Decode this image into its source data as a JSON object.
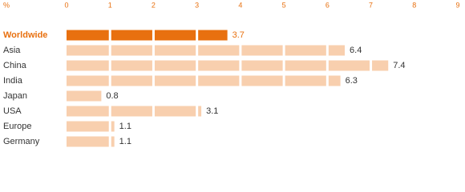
{
  "chart_data": {
    "type": "bar",
    "orientation": "horizontal",
    "x_label": "%",
    "categories": [
      "Worldwide",
      "Asia",
      "China",
      "India",
      "Japan",
      "USA",
      "Europe",
      "Germany"
    ],
    "values": [
      3.7,
      6.4,
      7.4,
      6.3,
      0.8,
      3.1,
      1.1,
      1.1
    ],
    "xlim": [
      0,
      9
    ],
    "xticks": [
      0,
      1,
      2,
      3,
      4,
      5,
      6,
      7,
      8,
      9
    ],
    "bar_color": "#f8cfae",
    "highlight_color": "#e8700f",
    "highlighted": [
      0
    ],
    "tick_color": "#e8700f",
    "segmented": true
  }
}
